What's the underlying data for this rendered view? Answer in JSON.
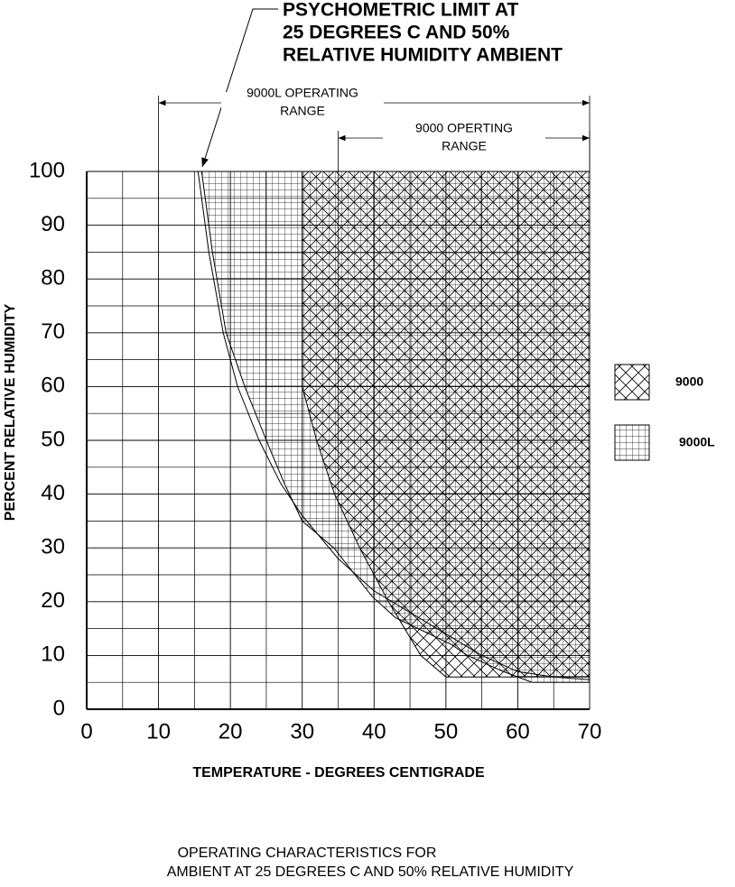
{
  "chart_data": {
    "type": "area",
    "x_label": "TEMPERATURE - DEGREES CENTIGRADE",
    "y_label": "PERCENT RELATIVE HUMIDITY",
    "caption": [
      "OPERATING CHARACTERISTICS FOR",
      "AMBIENT AT 25 DEGREES C AND 50% RELATIVE HUMIDITY"
    ],
    "xlim": [
      0,
      70
    ],
    "xticks": [
      0,
      10,
      20,
      30,
      40,
      50,
      60,
      70
    ],
    "ylim": [
      0,
      100
    ],
    "yticks": [
      0,
      10,
      20,
      30,
      40,
      50,
      60,
      70,
      80,
      90,
      100
    ],
    "minor_xticks": [
      5,
      15,
      25,
      35,
      45,
      55,
      65
    ],
    "minor_yticks": [
      5,
      15,
      25,
      35,
      45,
      55,
      65,
      75,
      85,
      95
    ],
    "grid": true,
    "legend": "right",
    "series": [
      {
        "name": "9000",
        "color": "#000000",
        "hatch": "cross",
        "x": [
          30,
          30,
          32,
          34.5,
          38,
          42,
          46.5,
          50,
          70
        ],
        "values": [
          100,
          60,
          50,
          40,
          30,
          20,
          10,
          6,
          6
        ]
      },
      {
        "name": "9000L",
        "color": "#000000",
        "hatch": "grid",
        "x": [
          16,
          17.5,
          19.4,
          22,
          25,
          27.5,
          30,
          34.4,
          39.7,
          43,
          50.8,
          53,
          58,
          62,
          70
        ],
        "values": [
          100,
          85,
          70,
          60,
          50,
          42,
          35,
          30,
          21,
          17,
          12,
          10,
          7,
          5,
          5
        ]
      }
    ],
    "limit_curve": {
      "x": [
        15.5,
        17,
        19,
        21,
        24,
        27,
        30,
        35,
        40,
        45,
        50,
        55,
        60,
        65,
        70
      ],
      "values": [
        100,
        85,
        70,
        60,
        50,
        42,
        36,
        28,
        22,
        18,
        14,
        10,
        7,
        6,
        5.5
      ]
    },
    "annotations": [
      {
        "text": [
          "PSYCHOMETRIC LIMIT AT",
          "25 DEGREES C AND 50%",
          "RELATIVE HUMIDITY AMBIENT"
        ]
      },
      {
        "text": [
          "9000L OPERATING",
          "RANGE"
        ],
        "x": [
          10,
          70
        ]
      },
      {
        "text": [
          "9000 OPERTING",
          "RANGE"
        ],
        "x": [
          35,
          70
        ]
      }
    ]
  }
}
